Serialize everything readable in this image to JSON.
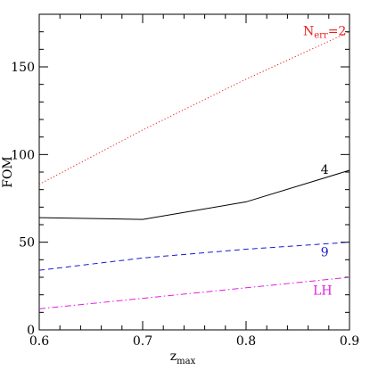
{
  "chart_data": {
    "type": "line",
    "title": "",
    "xlabel": "z",
    "xlabel_sub": "max",
    "ylabel": "FOM",
    "xlim": [
      0.6,
      0.9
    ],
    "ylim": [
      0,
      180
    ],
    "xticks": [
      0.6,
      0.7,
      0.8,
      0.9
    ],
    "xtick_labels": [
      "0.6",
      "0.7",
      "0.8",
      "0.9"
    ],
    "yticks": [
      0,
      50,
      100,
      150
    ],
    "ytick_labels": [
      "0",
      "50",
      "100",
      "150"
    ],
    "grid": false,
    "legend": "none",
    "series": [
      {
        "name": "N",
        "name_sub": "err",
        "name_suffix": "=2",
        "color": "#e8201a",
        "dash": "dotted",
        "label_x": 0.876,
        "label_y": 168,
        "points": [
          [
            0.6,
            83
          ],
          [
            0.7,
            114
          ],
          [
            0.8,
            143
          ],
          [
            0.9,
            170
          ]
        ]
      },
      {
        "name": "4",
        "color": "#000000",
        "dash": "solid",
        "label_x": 0.876,
        "label_y": 89,
        "points": [
          [
            0.6,
            64
          ],
          [
            0.7,
            63
          ],
          [
            0.8,
            73
          ],
          [
            0.9,
            91
          ]
        ]
      },
      {
        "name": "9",
        "color": "#1a1ad0",
        "dash": "dashed",
        "label_x": 0.876,
        "label_y": 42,
        "points": [
          [
            0.6,
            34
          ],
          [
            0.7,
            41
          ],
          [
            0.8,
            46
          ],
          [
            0.9,
            50
          ]
        ]
      },
      {
        "name": "LH",
        "color": "#e020e0",
        "dash": "dashdot",
        "label_x": 0.874,
        "label_y": 20,
        "points": [
          [
            0.6,
            12
          ],
          [
            0.7,
            18
          ],
          [
            0.8,
            24
          ],
          [
            0.9,
            30
          ]
        ]
      }
    ]
  }
}
